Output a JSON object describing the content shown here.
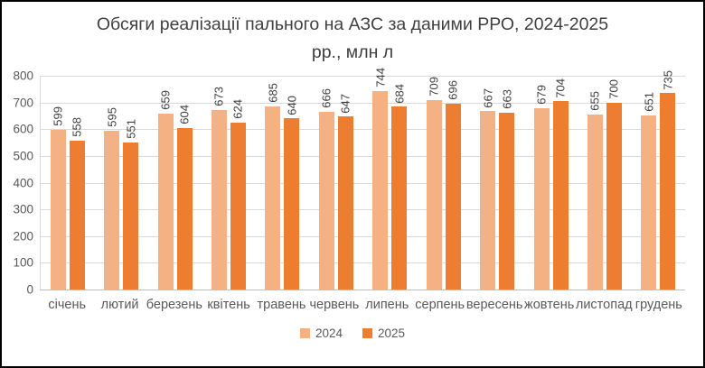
{
  "window": {
    "background": "#ffffff",
    "border_color": "#000000"
  },
  "colors": {
    "title_text": "#404040",
    "axis_text": "#595959",
    "value_label_text": "#404040",
    "gridline": "#D9D9D9",
    "axis_line": "#BFBFBF",
    "series_2024": "#F4B183",
    "series_2025": "#ED7D31"
  },
  "chart_data": {
    "type": "bar",
    "title": "Обсяги реалізації пального на АЗС за даними РРО, 2024-2025 рр., млн л",
    "title_lines": [
      "Обсяги реалізації пального на АЗС за даними РРО, 2024-2025",
      "рр., млн л"
    ],
    "categories": [
      "січень",
      "лютий",
      "березень",
      "квітень",
      "травень",
      "червень",
      "липень",
      "серпень",
      "вересень",
      "жовтень",
      "листопад",
      "грудень"
    ],
    "series": [
      {
        "name": "2024",
        "color": "#F4B183",
        "values": [
          599,
          595,
          659,
          673,
          685,
          666,
          744,
          709,
          667,
          679,
          655,
          651
        ]
      },
      {
        "name": "2025",
        "color": "#ED7D31",
        "values": [
          558,
          551,
          604,
          624,
          640,
          647,
          684,
          696,
          663,
          704,
          700,
          735
        ]
      }
    ],
    "xlabel": "",
    "ylabel": "",
    "ylim": [
      0,
      800
    ],
    "yticks": [
      0,
      100,
      200,
      300,
      400,
      500,
      600,
      700,
      800
    ],
    "grid": "horizontal",
    "legend_position": "bottom",
    "value_labels": "rotated-90-above-bars"
  }
}
